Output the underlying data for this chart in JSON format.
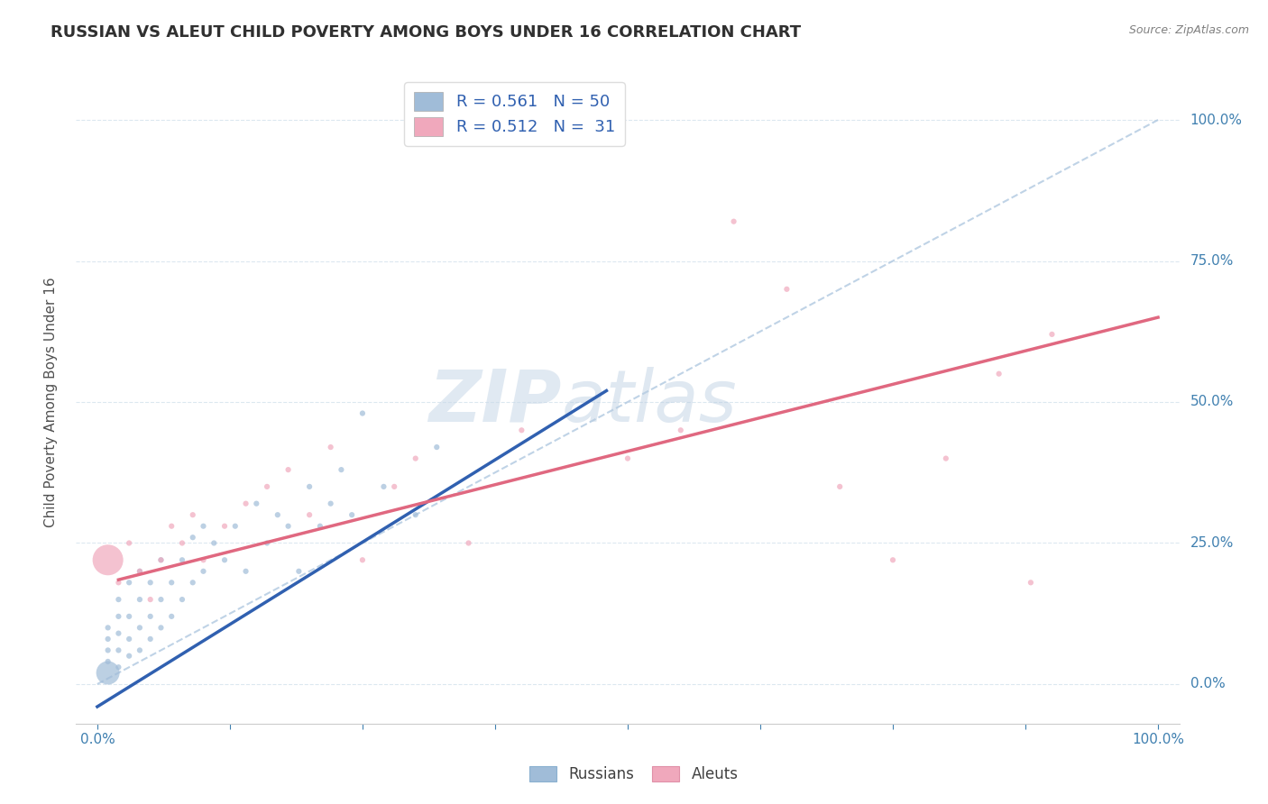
{
  "title": "RUSSIAN VS ALEUT CHILD POVERTY AMONG BOYS UNDER 16 CORRELATION CHART",
  "source": "Source: ZipAtlas.com",
  "ylabel": "Child Poverty Among Boys Under 16",
  "xlim": [
    -0.02,
    1.02
  ],
  "ylim": [
    -0.07,
    1.07
  ],
  "ytick_positions": [
    0.0,
    0.25,
    0.5,
    0.75,
    1.0
  ],
  "ytick_labels": [
    "0.0%",
    "25.0%",
    "50.0%",
    "75.0%",
    "100.0%"
  ],
  "xtick_labels_show": [
    "0.0%",
    "100.0%"
  ],
  "watermark_part1": "ZIP",
  "watermark_part2": "atlas",
  "russian_color": "#a0bcd8",
  "aleut_color": "#f0a8bc",
  "russian_line_color": "#3060b0",
  "aleut_line_color": "#e06880",
  "ref_line_color": "#b0c8e0",
  "bg_color": "#ffffff",
  "grid_color": "#dce8f0",
  "tick_color": "#4080b0",
  "axis_label_color": "#505050",
  "title_color": "#303030",
  "source_color": "#808080",
  "title_fontsize": 13,
  "axis_label_fontsize": 11,
  "tick_fontsize": 11,
  "source_fontsize": 9,
  "legend_R_color": "#3060b0",
  "legend_label1": "R = 0.561",
  "legend_N1": "N = 50",
  "legend_label2": "R = 0.512",
  "legend_N2": "N =  31",
  "bottom_legend_label1": "Russians",
  "bottom_legend_label2": "Aleuts",
  "russians_x": [
    0.01,
    0.01,
    0.01,
    0.01,
    0.01,
    0.02,
    0.02,
    0.02,
    0.02,
    0.02,
    0.03,
    0.03,
    0.03,
    0.03,
    0.04,
    0.04,
    0.04,
    0.04,
    0.05,
    0.05,
    0.05,
    0.06,
    0.06,
    0.06,
    0.07,
    0.07,
    0.08,
    0.08,
    0.09,
    0.09,
    0.1,
    0.1,
    0.11,
    0.12,
    0.13,
    0.14,
    0.15,
    0.16,
    0.17,
    0.18,
    0.19,
    0.2,
    0.21,
    0.22,
    0.23,
    0.24,
    0.25,
    0.27,
    0.3,
    0.32
  ],
  "russians_y": [
    0.02,
    0.04,
    0.06,
    0.08,
    0.1,
    0.03,
    0.06,
    0.09,
    0.12,
    0.15,
    0.05,
    0.08,
    0.12,
    0.18,
    0.06,
    0.1,
    0.15,
    0.2,
    0.08,
    0.12,
    0.18,
    0.1,
    0.15,
    0.22,
    0.12,
    0.18,
    0.15,
    0.22,
    0.18,
    0.26,
    0.2,
    0.28,
    0.25,
    0.22,
    0.28,
    0.2,
    0.32,
    0.25,
    0.3,
    0.28,
    0.2,
    0.35,
    0.28,
    0.32,
    0.38,
    0.3,
    0.48,
    0.35,
    0.3,
    0.42
  ],
  "russians_sizes": [
    350,
    20,
    20,
    20,
    20,
    20,
    20,
    20,
    20,
    20,
    20,
    20,
    20,
    20,
    20,
    20,
    20,
    20,
    20,
    20,
    20,
    20,
    20,
    20,
    20,
    20,
    20,
    20,
    20,
    20,
    20,
    20,
    20,
    20,
    20,
    20,
    20,
    20,
    20,
    20,
    20,
    20,
    20,
    20,
    20,
    20,
    20,
    20,
    20,
    20
  ],
  "aleuts_x": [
    0.01,
    0.02,
    0.03,
    0.04,
    0.05,
    0.06,
    0.07,
    0.08,
    0.09,
    0.1,
    0.12,
    0.14,
    0.16,
    0.18,
    0.2,
    0.22,
    0.25,
    0.28,
    0.3,
    0.35,
    0.4,
    0.5,
    0.55,
    0.6,
    0.65,
    0.7,
    0.75,
    0.8,
    0.85,
    0.88,
    0.9
  ],
  "aleuts_y": [
    0.22,
    0.18,
    0.25,
    0.2,
    0.15,
    0.22,
    0.28,
    0.25,
    0.3,
    0.22,
    0.28,
    0.32,
    0.35,
    0.38,
    0.3,
    0.42,
    0.22,
    0.35,
    0.4,
    0.25,
    0.45,
    0.4,
    0.45,
    0.82,
    0.7,
    0.35,
    0.22,
    0.4,
    0.55,
    0.18,
    0.62
  ],
  "aleuts_sizes": [
    600,
    20,
    20,
    20,
    20,
    20,
    20,
    20,
    20,
    20,
    20,
    20,
    20,
    20,
    20,
    20,
    20,
    20,
    20,
    20,
    20,
    20,
    20,
    20,
    20,
    20,
    20,
    20,
    20,
    20,
    20
  ],
  "russian_line_x0": 0.0,
  "russian_line_x1": 0.48,
  "russian_line_y0": -0.04,
  "russian_line_y1": 0.52,
  "aleut_line_x0": 0.02,
  "aleut_line_x1": 1.0,
  "aleut_line_y0": 0.185,
  "aleut_line_y1": 0.65,
  "ref_line_x0": 0.0,
  "ref_line_x1": 1.0,
  "ref_line_y0": 0.0,
  "ref_line_y1": 1.0
}
